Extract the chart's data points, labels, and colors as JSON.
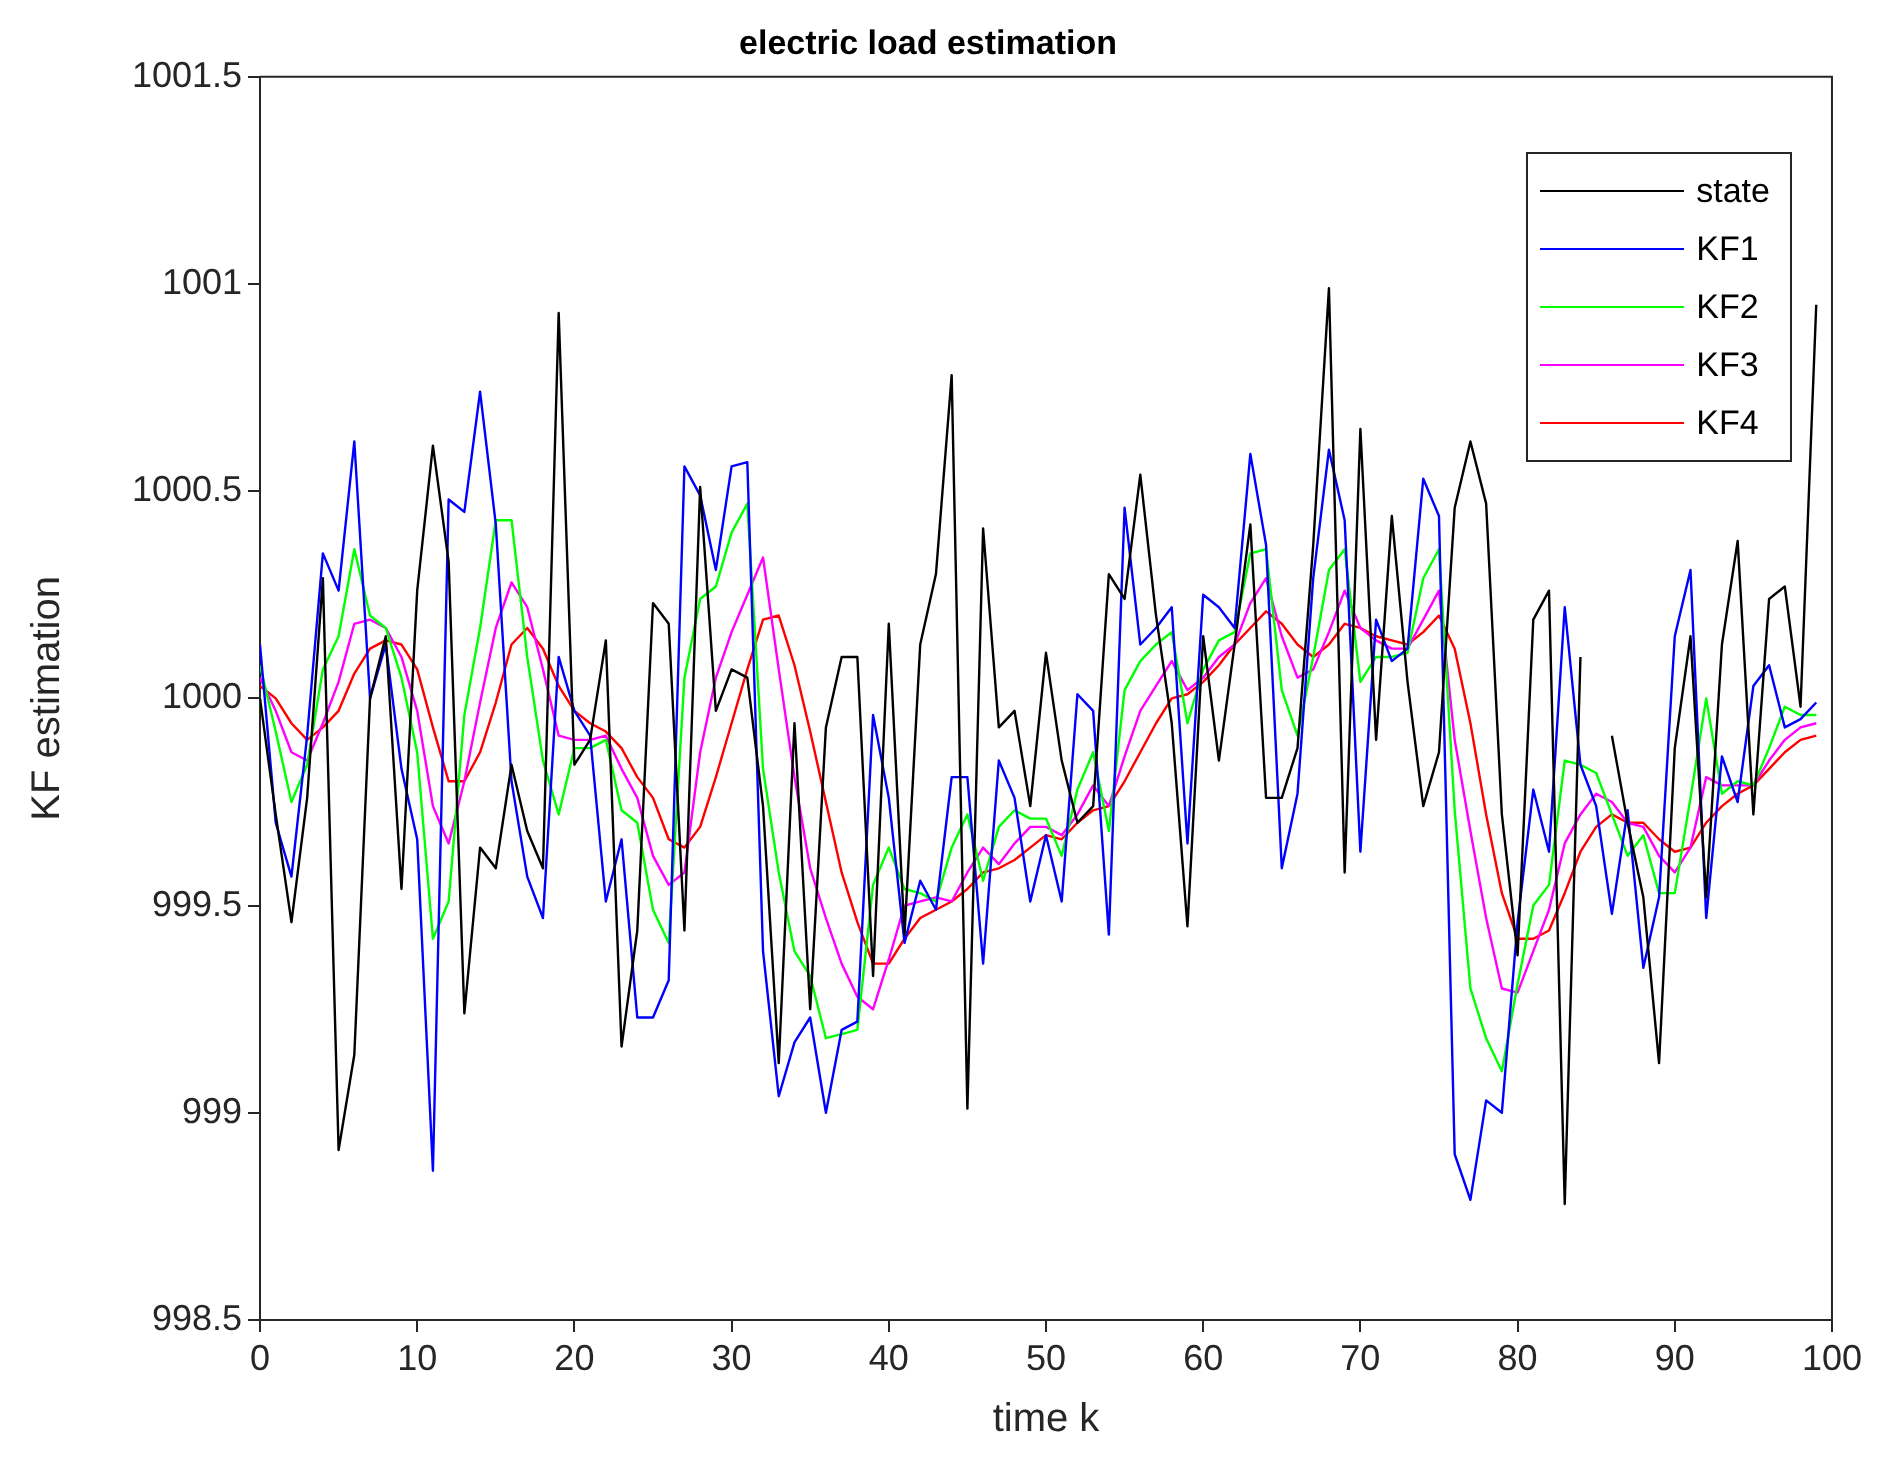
{
  "chart_data": {
    "type": "line",
    "title": "electric load estimation",
    "xlabel": "time k",
    "ylabel": "KF estimation",
    "x": [
      0,
      1,
      2,
      3,
      4,
      5,
      6,
      7,
      8,
      9,
      10,
      11,
      12,
      13,
      14,
      15,
      16,
      17,
      18,
      19,
      20,
      21,
      22,
      23,
      24,
      25,
      26,
      27,
      28,
      29,
      30,
      31,
      32,
      33,
      34,
      35,
      36,
      37,
      38,
      39,
      40,
      41,
      42,
      43,
      44,
      45,
      46,
      47,
      48,
      49,
      50,
      51,
      52,
      53,
      54,
      55,
      56,
      57,
      58,
      59,
      60,
      61,
      62,
      63,
      64,
      65,
      66,
      67,
      68,
      69,
      70,
      71,
      72,
      73,
      74,
      75,
      76,
      77,
      78,
      79,
      80,
      81,
      82,
      83,
      84,
      85,
      86,
      87,
      88,
      89,
      90,
      91,
      92,
      93,
      94,
      95,
      96,
      97,
      98,
      99
    ],
    "xlim": [
      0,
      100
    ],
    "xticks": [
      0,
      10,
      20,
      30,
      40,
      50,
      60,
      70,
      80,
      90,
      100
    ],
    "ylim": [
      998.5,
      1001.5
    ],
    "yticks": [
      998.5,
      999,
      999.5,
      1000,
      1000.5,
      1001,
      1001.5
    ],
    "legend": "top right",
    "series": [
      {
        "name": "state",
        "color": "#000000",
        "values": [
          1000.0,
          999.72,
          999.46,
          999.76,
          1000.29,
          998.91,
          999.14,
          1000.0,
          1000.15,
          999.54,
          1000.26,
          1000.61,
          1000.33,
          999.24,
          999.64,
          999.59,
          999.84,
          999.68,
          999.59,
          1000.93,
          999.84,
          999.9,
          1000.14,
          999.16,
          999.44,
          1000.23,
          1000.18,
          999.44,
          1000.51,
          999.97,
          1000.07,
          1000.05,
          999.74,
          999.12,
          999.94,
          999.25,
          999.93,
          1000.1,
          1000.1,
          999.33,
          1000.18,
          999.43,
          1000.13,
          1000.3,
          1000.78,
          999.01,
          1000.41,
          999.93,
          999.97,
          999.74,
          1000.11,
          999.85,
          999.7,
          999.74,
          1000.3,
          1000.24,
          1000.54,
          1000.2,
          999.94,
          999.45,
          1000.15,
          999.85,
          1000.13,
          1000.42,
          999.76,
          999.76,
          999.88,
          1000.37,
          1000.99,
          999.58,
          1000.65,
          999.9,
          1000.44,
          1000.04,
          999.74,
          999.87,
          1000.46,
          1000.62,
          1000.47,
          999.72,
          999.38,
          1000.19,
          1000.26,
          998.78,
          1000.1,
          null,
          999.91,
          999.7,
          999.52,
          999.12,
          999.88,
          1000.15,
          999.52,
          1000.13,
          1000.38,
          999.72,
          1000.24,
          1000.27,
          999.98,
          1000.95
        ]
      },
      {
        "name": "KF1",
        "color": "#0000ff",
        "values": [
          1000.13,
          999.7,
          999.57,
          999.91,
          1000.35,
          1000.26,
          1000.62,
          1000.0,
          1000.13,
          999.83,
          999.66,
          998.86,
          1000.48,
          1000.45,
          1000.74,
          1000.42,
          999.8,
          999.57,
          999.47,
          1000.1,
          999.97,
          999.91,
          999.51,
          999.66,
          999.23,
          999.23,
          999.32,
          1000.56,
          1000.49,
          1000.31,
          1000.56,
          1000.57,
          999.39,
          999.04,
          999.17,
          999.23,
          999.0,
          999.2,
          999.22,
          999.96,
          999.76,
          999.41,
          999.56,
          999.49,
          999.81,
          999.81,
          999.36,
          999.85,
          999.76,
          999.51,
          999.67,
          999.51,
          1000.01,
          999.97,
          999.43,
          1000.46,
          1000.13,
          1000.17,
          1000.22,
          999.65,
          1000.25,
          1000.22,
          1000.17,
          1000.59,
          1000.37,
          999.59,
          999.77,
          1000.29,
          1000.6,
          1000.43,
          999.63,
          1000.19,
          1000.09,
          1000.12,
          1000.53,
          1000.44,
          998.9,
          998.79,
          999.03,
          999.0,
          999.46,
          999.78,
          999.63,
          1000.22,
          999.84,
          999.74,
          999.48,
          999.73,
          999.35,
          999.52,
          1000.15,
          1000.31,
          999.47,
          999.86,
          999.75,
          1000.03,
          1000.08,
          999.93,
          999.95,
          999.99
        ]
      },
      {
        "name": "KF2",
        "color": "#00ff00",
        "values": [
          1000.08,
          999.92,
          999.75,
          999.84,
          1000.07,
          1000.15,
          1000.36,
          1000.2,
          1000.17,
          1000.05,
          999.87,
          999.42,
          999.51,
          999.96,
          1000.17,
          1000.43,
          1000.43,
          1000.1,
          999.85,
          999.72,
          999.88,
          999.88,
          999.9,
          999.73,
          999.7,
          999.49,
          999.41,
          1000.05,
          1000.24,
          1000.27,
          1000.4,
          1000.47,
          999.83,
          999.58,
          999.39,
          999.33,
          999.18,
          999.19,
          999.2,
          999.55,
          999.64,
          999.54,
          999.53,
          999.51,
          999.64,
          999.72,
          999.56,
          999.69,
          999.73,
          999.71,
          999.71,
          999.62,
          999.78,
          999.87,
          999.68,
          1000.02,
          1000.09,
          1000.13,
          1000.16,
          999.94,
          1000.07,
          1000.14,
          1000.16,
          1000.35,
          1000.36,
          1000.02,
          999.91,
          1000.1,
          1000.31,
          1000.36,
          1000.04,
          1000.1,
          1000.1,
          1000.11,
          1000.29,
          1000.36,
          999.73,
          999.3,
          999.18,
          999.1,
          999.31,
          999.5,
          999.55,
          999.85,
          999.84,
          999.82,
          999.72,
          999.62,
          999.67,
          999.53,
          999.53,
          999.76,
          1000.0,
          999.77,
          999.8,
          999.79,
          999.88,
          999.98,
          999.96,
          999.96
        ]
      },
      {
        "name": "KF3",
        "color": "#ff00ff",
        "values": [
          1000.05,
          999.97,
          999.87,
          999.85,
          999.94,
          1000.04,
          1000.18,
          1000.19,
          1000.17,
          1000.1,
          999.97,
          999.74,
          999.65,
          999.8,
          999.99,
          1000.17,
          1000.28,
          1000.22,
          1000.07,
          999.91,
          999.9,
          999.9,
          999.91,
          999.83,
          999.76,
          999.62,
          999.55,
          999.58,
          999.87,
          1000.05,
          1000.16,
          1000.25,
          1000.34,
          1000.07,
          999.81,
          999.59,
          999.47,
          999.36,
          999.28,
          999.25,
          999.37,
          999.5,
          999.51,
          999.52,
          999.51,
          999.58,
          999.64,
          999.6,
          999.65,
          999.69,
          999.69,
          999.67,
          999.72,
          999.79,
          999.74,
          999.86,
          999.97,
          1000.03,
          1000.09,
          1000.02,
          1000.05,
          1000.1,
          1000.13,
          1000.23,
          1000.29,
          1000.15,
          1000.05,
          1000.07,
          1000.16,
          1000.26,
          1000.17,
          1000.14,
          1000.12,
          1000.12,
          1000.19,
          1000.26,
          999.9,
          999.68,
          999.47,
          999.3,
          999.29,
          999.39,
          999.49,
          999.65,
          999.72,
          999.77,
          999.75,
          999.7,
          999.69,
          999.62,
          999.58,
          999.64,
          999.81,
          999.79,
          999.79,
          999.79,
          999.85,
          999.9,
          999.93,
          999.94
        ]
      },
      {
        "name": "KF4",
        "color": "#ff0000",
        "values": [
          1000.03,
          1000.0,
          999.94,
          999.9,
          999.93,
          999.97,
          1000.06,
          1000.12,
          1000.14,
          1000.13,
          1000.07,
          999.93,
          999.8,
          999.8,
          999.87,
          999.99,
          1000.13,
          1000.17,
          1000.12,
          1000.03,
          999.97,
          999.94,
          999.92,
          999.88,
          999.81,
          999.76,
          999.66,
          999.64,
          999.69,
          999.81,
          999.94,
          1000.07,
          1000.19,
          1000.2,
          1000.08,
          999.92,
          999.75,
          999.58,
          999.46,
          999.36,
          999.36,
          999.42,
          999.47,
          999.49,
          999.51,
          999.54,
          999.58,
          999.59,
          999.61,
          999.64,
          999.67,
          999.66,
          999.7,
          999.73,
          999.74,
          999.8,
          999.87,
          999.94,
          1000.0,
          1000.01,
          1000.04,
          1000.08,
          1000.13,
          1000.17,
          1000.21,
          1000.18,
          1000.13,
          1000.1,
          1000.13,
          1000.18,
          1000.17,
          1000.15,
          1000.14,
          1000.13,
          1000.16,
          1000.2,
          1000.12,
          999.94,
          999.72,
          999.53,
          999.42,
          999.42,
          999.44,
          999.53,
          999.63,
          999.69,
          999.72,
          999.7,
          999.7,
          999.66,
          999.63,
          999.64,
          999.7,
          999.74,
          999.77,
          999.79,
          999.83,
          999.87,
          999.9,
          999.91
        ]
      }
    ]
  }
}
